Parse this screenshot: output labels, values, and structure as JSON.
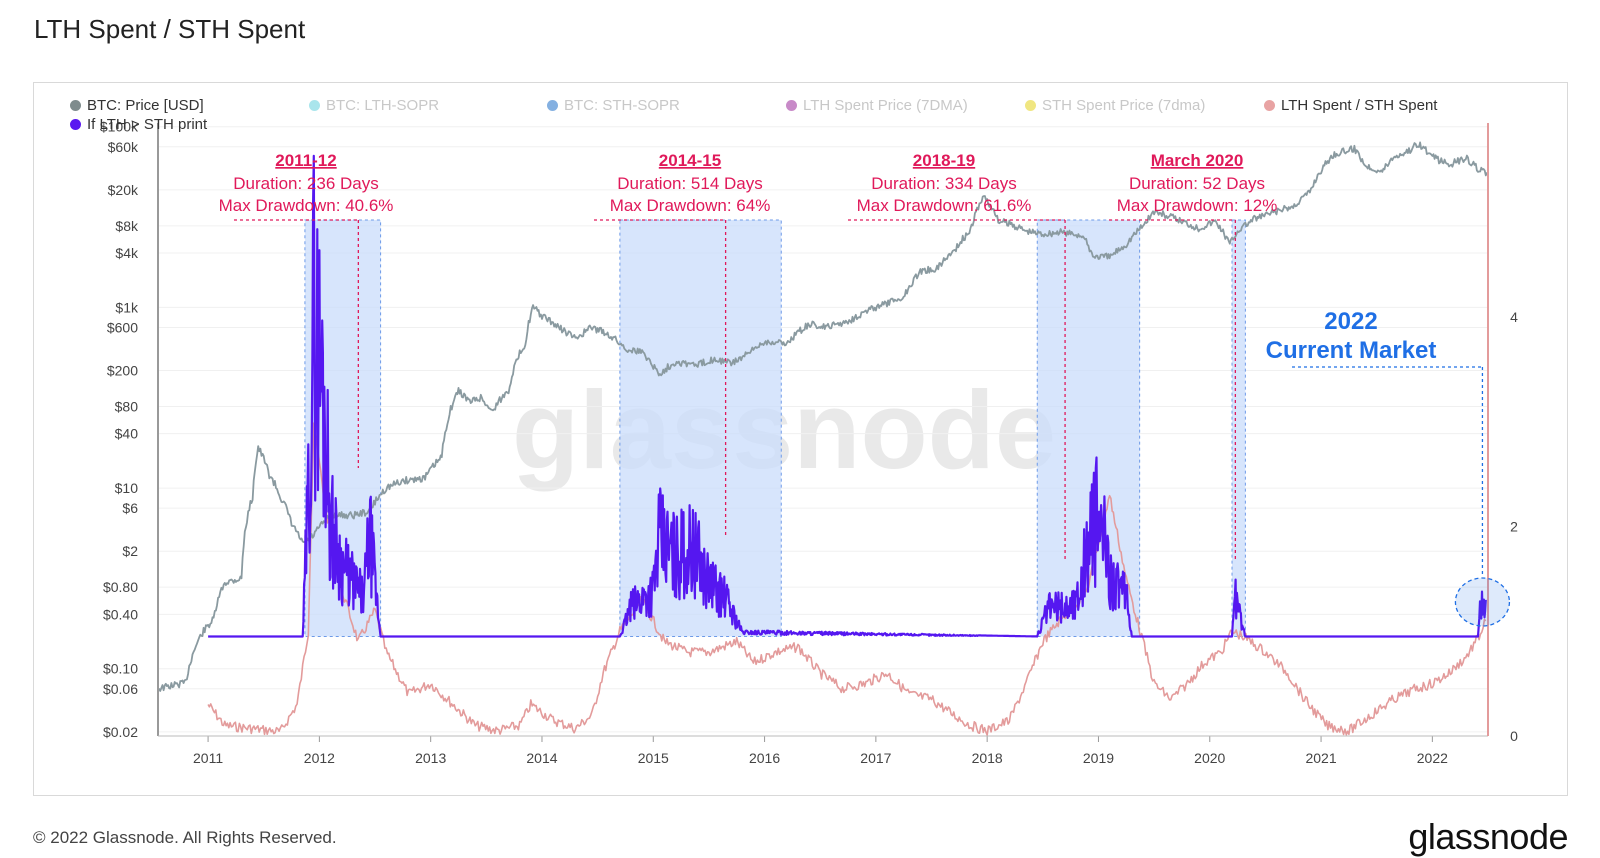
{
  "page": {
    "title": "LTH Spent / STH Spent",
    "copyright": "© 2022 Glassnode. All Rights Reserved.",
    "brand": "glassnode",
    "watermark": "glassnode"
  },
  "legend": [
    {
      "label": "BTC: Price [USD]",
      "color": "#7f8c8d",
      "active": true
    },
    {
      "label": "BTC: LTH-SOPR",
      "color": "#62d0dc",
      "active": false
    },
    {
      "label": "BTC: STH-SOPR",
      "color": "#1f6fc9",
      "active": false
    },
    {
      "label": "LTH Spent Price (7DMA)",
      "color": "#9b2a9b",
      "active": false
    },
    {
      "label": "STH Spent Price (7dma)",
      "color": "#e3d11a",
      "active": false
    },
    {
      "label": "LTH Spent / STH Spent",
      "color": "#e8a3a3",
      "active": true
    },
    {
      "label": "If LTH > STH print",
      "color": "#5a17f0",
      "active": true
    }
  ],
  "colors": {
    "price": "#8a9aa0",
    "ratio": "#e39b9b",
    "print": "#5517f0",
    "band_fill": "#c9dcfb",
    "band_edge": "#6d9ae8",
    "annotation": "#e0195a",
    "current": "#1f6fe5"
  },
  "chart_data": {
    "type": "line",
    "title": "LTH Spent / STH Spent",
    "x_axis": {
      "type": "time",
      "range": [
        2010.55,
        2022.5
      ],
      "ticks": [
        "2011",
        "2012",
        "2013",
        "2014",
        "2015",
        "2016",
        "2017",
        "2018",
        "2019",
        "2020",
        "2021",
        "2022"
      ]
    },
    "y_left": {
      "scale": "log",
      "unit": "USD",
      "range": [
        0.018,
        110000
      ],
      "ticks": [
        {
          "label": "$100k",
          "value": 100000
        },
        {
          "label": "$60k",
          "value": 60000
        },
        {
          "label": "$20k",
          "value": 20000
        },
        {
          "label": "$8k",
          "value": 8000
        },
        {
          "label": "$4k",
          "value": 4000
        },
        {
          "label": "$1k",
          "value": 1000
        },
        {
          "label": "$600",
          "value": 600
        },
        {
          "label": "$200",
          "value": 200
        },
        {
          "label": "$80",
          "value": 80
        },
        {
          "label": "$40",
          "value": 40
        },
        {
          "label": "$10",
          "value": 10
        },
        {
          "label": "$6",
          "value": 6
        },
        {
          "label": "$2",
          "value": 2
        },
        {
          "label": "$0.80",
          "value": 0.8
        },
        {
          "label": "$0.40",
          "value": 0.4
        },
        {
          "label": "$0.10",
          "value": 0.1
        },
        {
          "label": "$0.06",
          "value": 0.06
        },
        {
          "label": "$0.02",
          "value": 0.02
        }
      ]
    },
    "y_right": {
      "scale": "linear",
      "range": [
        0,
        5.85
      ],
      "ticks": [
        {
          "label": "0",
          "value": 0
        },
        {
          "label": "2",
          "value": 2
        },
        {
          "label": "4",
          "value": 4
        }
      ]
    },
    "series": [
      {
        "name": "BTC: Price [USD]",
        "axis": "left",
        "points": [
          [
            2010.55,
            0.06
          ],
          [
            2010.8,
            0.07
          ],
          [
            2010.95,
            0.25
          ],
          [
            2011.05,
            0.35
          ],
          [
            2011.15,
            0.9
          ],
          [
            2011.3,
            1.0
          ],
          [
            2011.4,
            8
          ],
          [
            2011.45,
            28
          ],
          [
            2011.55,
            14
          ],
          [
            2011.65,
            8
          ],
          [
            2011.75,
            4
          ],
          [
            2011.85,
            2.4
          ],
          [
            2011.95,
            3
          ],
          [
            2012.1,
            5
          ],
          [
            2012.3,
            5
          ],
          [
            2012.45,
            5.5
          ],
          [
            2012.6,
            10
          ],
          [
            2012.75,
            12
          ],
          [
            2012.95,
            13
          ],
          [
            2013.1,
            22
          ],
          [
            2013.25,
            120
          ],
          [
            2013.35,
            90
          ],
          [
            2013.45,
            100
          ],
          [
            2013.55,
            70
          ],
          [
            2013.7,
            120
          ],
          [
            2013.85,
            400
          ],
          [
            2013.92,
            1000
          ],
          [
            2014.0,
            800
          ],
          [
            2014.15,
            600
          ],
          [
            2014.3,
            450
          ],
          [
            2014.45,
            600
          ],
          [
            2014.6,
            500
          ],
          [
            2014.75,
            350
          ],
          [
            2014.9,
            320
          ],
          [
            2015.05,
            180
          ],
          [
            2015.2,
            250
          ],
          [
            2015.4,
            230
          ],
          [
            2015.55,
            270
          ],
          [
            2015.7,
            240
          ],
          [
            2015.85,
            300
          ],
          [
            2016.0,
            420
          ],
          [
            2016.2,
            400
          ],
          [
            2016.4,
            650
          ],
          [
            2016.55,
            600
          ],
          [
            2016.75,
            700
          ],
          [
            2016.95,
            950
          ],
          [
            2017.1,
            1100
          ],
          [
            2017.25,
            1300
          ],
          [
            2017.4,
            2500
          ],
          [
            2017.55,
            2700
          ],
          [
            2017.7,
            4200
          ],
          [
            2017.85,
            7000
          ],
          [
            2017.97,
            17000
          ],
          [
            2018.1,
            9000
          ],
          [
            2018.2,
            8500
          ],
          [
            2018.35,
            7000
          ],
          [
            2018.5,
            6500
          ],
          [
            2018.65,
            6800
          ],
          [
            2018.85,
            6300
          ],
          [
            2018.95,
            3700
          ],
          [
            2019.1,
            3600
          ],
          [
            2019.25,
            5000
          ],
          [
            2019.4,
            8000
          ],
          [
            2019.5,
            11500
          ],
          [
            2019.6,
            10500
          ],
          [
            2019.75,
            9000
          ],
          [
            2019.9,
            7500
          ],
          [
            2020.05,
            9000
          ],
          [
            2020.18,
            5000
          ],
          [
            2020.25,
            7000
          ],
          [
            2020.4,
            9500
          ],
          [
            2020.55,
            11000
          ],
          [
            2020.75,
            13000
          ],
          [
            2020.9,
            19000
          ],
          [
            2021.0,
            33000
          ],
          [
            2021.12,
            50000
          ],
          [
            2021.3,
            57000
          ],
          [
            2021.4,
            37000
          ],
          [
            2021.55,
            32000
          ],
          [
            2021.65,
            46000
          ],
          [
            2021.8,
            55000
          ],
          [
            2021.87,
            66000
          ],
          [
            2022.0,
            46000
          ],
          [
            2022.15,
            38000
          ],
          [
            2022.3,
            45000
          ],
          [
            2022.4,
            35000
          ],
          [
            2022.5,
            30000
          ]
        ]
      },
      {
        "name": "LTH Spent / STH Spent",
        "axis": "right",
        "points": [
          [
            2011.0,
            0.3
          ],
          [
            2011.15,
            0.1
          ],
          [
            2011.4,
            0.07
          ],
          [
            2011.65,
            0.04
          ],
          [
            2011.8,
            0.3
          ],
          [
            2011.9,
            1.0
          ],
          [
            2011.95,
            3.0
          ],
          [
            2012.05,
            2.2
          ],
          [
            2012.2,
            1.4
          ],
          [
            2012.35,
            0.9
          ],
          [
            2012.5,
            1.2
          ],
          [
            2012.6,
            0.8
          ],
          [
            2012.8,
            0.4
          ],
          [
            2013.0,
            0.5
          ],
          [
            2013.2,
            0.3
          ],
          [
            2013.4,
            0.1
          ],
          [
            2013.6,
            0.05
          ],
          [
            2013.8,
            0.1
          ],
          [
            2013.9,
            0.3
          ],
          [
            2014.1,
            0.15
          ],
          [
            2014.3,
            0.07
          ],
          [
            2014.45,
            0.2
          ],
          [
            2014.55,
            0.6
          ],
          [
            2014.7,
            1.0
          ],
          [
            2014.9,
            1.3
          ],
          [
            2015.1,
            0.9
          ],
          [
            2015.3,
            0.8
          ],
          [
            2015.5,
            0.8
          ],
          [
            2015.75,
            0.9
          ],
          [
            2015.9,
            0.7
          ],
          [
            2016.1,
            0.8
          ],
          [
            2016.3,
            0.85
          ],
          [
            2016.5,
            0.6
          ],
          [
            2016.7,
            0.45
          ],
          [
            2016.9,
            0.5
          ],
          [
            2017.1,
            0.6
          ],
          [
            2017.3,
            0.4
          ],
          [
            2017.5,
            0.35
          ],
          [
            2017.7,
            0.2
          ],
          [
            2017.85,
            0.1
          ],
          [
            2018.0,
            0.05
          ],
          [
            2018.2,
            0.15
          ],
          [
            2018.35,
            0.5
          ],
          [
            2018.5,
            0.9
          ],
          [
            2018.65,
            1.1
          ],
          [
            2018.75,
            1.2
          ],
          [
            2018.9,
            1.4
          ],
          [
            2019.1,
            2.3
          ],
          [
            2019.25,
            1.5
          ],
          [
            2019.4,
            0.9
          ],
          [
            2019.5,
            0.5
          ],
          [
            2019.65,
            0.35
          ],
          [
            2019.8,
            0.5
          ],
          [
            2019.95,
            0.7
          ],
          [
            2020.1,
            0.8
          ],
          [
            2020.2,
            1.0
          ],
          [
            2020.3,
            0.95
          ],
          [
            2020.5,
            0.8
          ],
          [
            2020.7,
            0.6
          ],
          [
            2020.85,
            0.35
          ],
          [
            2021.05,
            0.1
          ],
          [
            2021.25,
            0.05
          ],
          [
            2021.45,
            0.2
          ],
          [
            2021.65,
            0.35
          ],
          [
            2021.85,
            0.45
          ],
          [
            2022.0,
            0.5
          ],
          [
            2022.15,
            0.6
          ],
          [
            2022.3,
            0.75
          ],
          [
            2022.42,
            0.95
          ],
          [
            2022.48,
            1.1
          ]
        ]
      },
      {
        "name": "If LTH > STH print",
        "axis": "right",
        "baseline": 0.95,
        "points": [
          [
            2011.0,
            0.95
          ],
          [
            2011.85,
            0.95
          ],
          [
            2011.9,
            2.6
          ],
          [
            2011.95,
            4.8
          ],
          [
            2012.0,
            4.2
          ],
          [
            2012.05,
            3.6
          ],
          [
            2012.1,
            2.3
          ],
          [
            2012.2,
            1.8
          ],
          [
            2012.3,
            1.6
          ],
          [
            2012.4,
            1.4
          ],
          [
            2012.45,
            2.2
          ],
          [
            2012.55,
            0.95
          ],
          [
            2014.7,
            0.95
          ],
          [
            2014.8,
            1.3
          ],
          [
            2015.0,
            1.5
          ],
          [
            2015.05,
            2.1
          ],
          [
            2015.2,
            1.9
          ],
          [
            2015.35,
            2.0
          ],
          [
            2015.5,
            1.6
          ],
          [
            2015.65,
            1.4
          ],
          [
            2015.8,
            1.0
          ],
          [
            2018.45,
            0.95
          ],
          [
            2018.55,
            1.3
          ],
          [
            2018.7,
            1.3
          ],
          [
            2018.8,
            1.35
          ],
          [
            2018.9,
            2.0
          ],
          [
            2019.0,
            2.4
          ],
          [
            2019.1,
            1.7
          ],
          [
            2019.25,
            1.4
          ],
          [
            2019.3,
            0.95
          ],
          [
            2020.2,
            0.95
          ],
          [
            2020.22,
            1.5
          ],
          [
            2020.28,
            1.15
          ],
          [
            2020.32,
            0.95
          ],
          [
            2022.41,
            0.95
          ],
          [
            2022.44,
            1.4
          ],
          [
            2022.48,
            1.3
          ]
        ]
      }
    ],
    "regions": [
      {
        "label": "2011-12",
        "x": [
          2011.87,
          2012.55
        ],
        "duration": "Duration: 236 Days",
        "drawdown": "Max Drawdown: 40.6%",
        "marker_x": 2012.35
      },
      {
        "label": "2014-15",
        "x": [
          2014.7,
          2016.15
        ],
        "duration": "Duration: 514 Days",
        "drawdown": "Max Drawdown: 64%",
        "marker_x": 2015.65
      },
      {
        "label": "2018-19",
        "x": [
          2018.45,
          2019.37
        ],
        "duration": "Duration: 334 Days",
        "drawdown": "Max Drawdown: 61.6%",
        "marker_x": 2018.7
      },
      {
        "label": "March 2020",
        "x": [
          2020.2,
          2020.32
        ],
        "duration": "Duration: 52 Days",
        "drawdown": "Max Drawdown: 12%",
        "marker_x": 2020.23
      }
    ],
    "current_market": {
      "year": "2022",
      "label": "Current Market",
      "x": 2022.45
    }
  }
}
